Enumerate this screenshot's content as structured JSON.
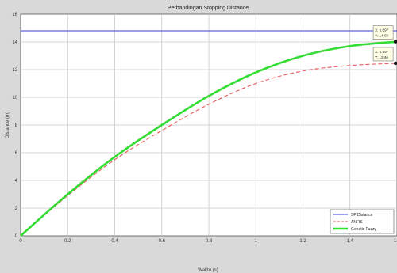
{
  "chart_data": {
    "type": "line",
    "title": "Perbandingan Stopping Distance",
    "xlabel": "Waktu (s)",
    "ylabel": "Distance (m)",
    "xlim": [
      0,
      1.6
    ],
    "ylim": [
      0,
      16
    ],
    "xticks": [
      "0",
      "0.2",
      "0.4",
      "0.6",
      "0.8",
      "1",
      "1.2",
      "1.4",
      "1.6"
    ],
    "yticks": [
      "0",
      "2",
      "4",
      "6",
      "8",
      "10",
      "12",
      "14",
      "16"
    ],
    "grid": true,
    "legend_position": "bottom-right",
    "series": [
      {
        "name": "SP Distance",
        "color": "#3b3bd6",
        "style": "solid",
        "x": [
          0,
          1.6
        ],
        "y": [
          14.8,
          14.8
        ]
      },
      {
        "name": "ANFIS",
        "color": "#e85a5a",
        "style": "dashed",
        "x": [
          0,
          0.2,
          0.4,
          0.6,
          0.8,
          1.0,
          1.2,
          1.4,
          1.597
        ],
        "y": [
          0,
          2.9,
          5.5,
          7.6,
          9.5,
          11.0,
          11.9,
          12.3,
          12.46
        ]
      },
      {
        "name": "Genetic Fuzzy",
        "color": "#33dd33",
        "style": "solid",
        "x": [
          0,
          0.2,
          0.4,
          0.6,
          0.8,
          1.0,
          1.2,
          1.4,
          1.597
        ],
        "y": [
          0,
          3.0,
          5.7,
          8.0,
          10.1,
          11.8,
          13.0,
          13.7,
          14.02
        ]
      }
    ],
    "annotations": [
      {
        "lines": [
          "X: 1.597",
          "Y: 14.02"
        ],
        "x": 1.597,
        "y": 14.02
      },
      {
        "lines": [
          "X: 1.597",
          "Y: 12.46"
        ],
        "x": 1.597,
        "y": 12.46
      }
    ]
  }
}
